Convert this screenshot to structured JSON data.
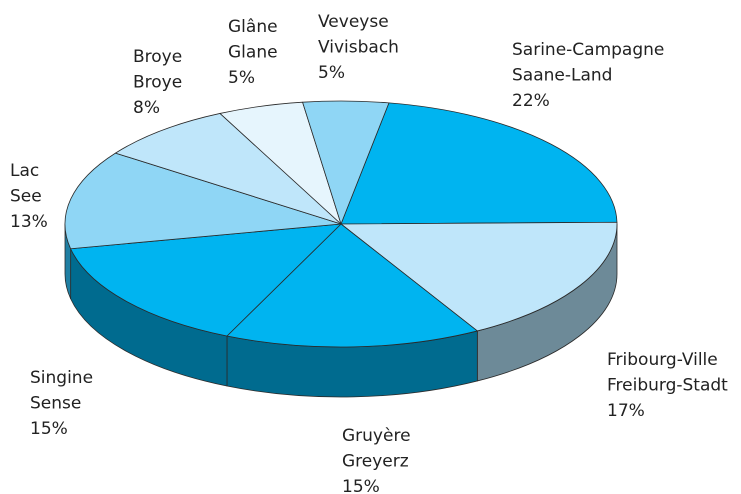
{
  "chart_data": {
    "type": "pie3d",
    "categories": [
      [
        "Sarine-Campagne",
        "Saane-Land"
      ],
      [
        "Fribourg-Ville",
        "Freiburg-Stadt"
      ],
      [
        "Gruyère",
        "Greyerz"
      ],
      [
        "Singine",
        "Sense"
      ],
      [
        "Lac",
        "See"
      ],
      [
        "Broye",
        "Broye"
      ],
      [
        "Glâne",
        "Glane"
      ],
      [
        "Veveyse",
        "Vivisbach"
      ]
    ],
    "values": [
      22,
      17,
      15,
      15,
      13,
      8,
      5,
      5
    ],
    "value_labels": [
      "22%",
      "17%",
      "15%",
      "15%",
      "13%",
      "8%",
      "5%",
      "5%"
    ],
    "colors": [
      "#00b4f0",
      "#bfe6fa",
      "#00b4f0",
      "#00b4f0",
      "#8fd6f5",
      "#bfe6fa",
      "#e6f5fd",
      "#8fd6f5"
    ],
    "side_colors": [
      "#006b8f",
      "#6d8a98",
      "#006b8f",
      "#006b8f",
      "#1f7fa3",
      "#6d8a98",
      "#6d8a98",
      "#1f7fa3"
    ]
  }
}
